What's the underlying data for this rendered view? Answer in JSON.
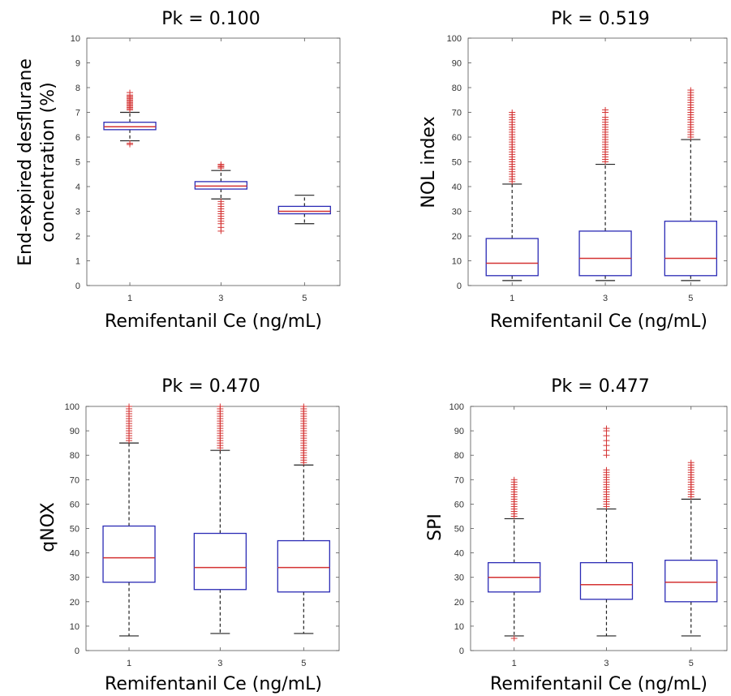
{
  "chart_data": [
    {
      "type": "box",
      "title": "Pk = 0.100",
      "xlabel": "Remifentanil Ce (ng/mL)",
      "ylabel": [
        "End-expired desflurane",
        "concentration (%)"
      ],
      "categories": [
        "1",
        "3",
        "5"
      ],
      "ylim": [
        0,
        10
      ],
      "yticks": [
        "0",
        "1",
        "2",
        "3",
        "4",
        "5",
        "6",
        "7",
        "8",
        "9",
        "10"
      ],
      "boxes": [
        {
          "category": "1",
          "whisker_low": 5.85,
          "q1": 6.3,
          "median": 6.42,
          "q3": 6.6,
          "whisker_high": 7.0,
          "outliers": [
            5.7,
            5.75,
            7.1,
            7.15,
            7.2,
            7.25,
            7.3,
            7.35,
            7.4,
            7.45,
            7.5,
            7.55,
            7.6,
            7.65,
            7.7,
            7.8
          ]
        },
        {
          "category": "3",
          "whisker_low": 3.5,
          "q1": 3.9,
          "median": 4.02,
          "q3": 4.2,
          "whisker_high": 4.65,
          "outliers": [
            4.75,
            4.8,
            4.85,
            4.9,
            3.4,
            3.3,
            3.2,
            3.1,
            3.0,
            2.9,
            2.8,
            2.7,
            2.6,
            2.5,
            2.35,
            2.2
          ]
        },
        {
          "category": "5",
          "whisker_low": 2.5,
          "q1": 2.9,
          "median": 3.0,
          "q3": 3.2,
          "whisker_high": 3.65,
          "outliers": []
        }
      ]
    },
    {
      "type": "box",
      "title": "Pk = 0.519",
      "xlabel": "Remifentanil Ce (ng/mL)",
      "ylabel": [
        "NOL index"
      ],
      "categories": [
        "1",
        "3",
        "5"
      ],
      "ylim": [
        0,
        100
      ],
      "yticks": [
        "0",
        "10",
        "20",
        "30",
        "40",
        "50",
        "60",
        "70",
        "80",
        "90",
        "100"
      ],
      "boxes": [
        {
          "category": "1",
          "whisker_low": 2,
          "q1": 4,
          "median": 9,
          "q3": 19,
          "whisker_high": 41,
          "outliers": [
            42,
            43,
            44,
            45,
            46,
            47,
            48,
            49,
            50,
            51,
            52,
            53,
            54,
            55,
            56,
            57,
            58,
            59,
            60,
            61,
            62,
            63,
            64,
            65,
            66,
            67,
            68,
            69,
            70
          ]
        },
        {
          "category": "3",
          "whisker_low": 2,
          "q1": 4,
          "median": 11,
          "q3": 22,
          "whisker_high": 49,
          "outliers": [
            50,
            51,
            52,
            53,
            54,
            55,
            56,
            57,
            58,
            59,
            60,
            61,
            62,
            63,
            64,
            65,
            66,
            67,
            68,
            70,
            71
          ]
        },
        {
          "category": "5",
          "whisker_low": 2,
          "q1": 4,
          "median": 11,
          "q3": 26,
          "whisker_high": 59,
          "outliers": [
            60,
            61,
            62,
            63,
            64,
            65,
            66,
            67,
            68,
            69,
            70,
            71,
            72,
            73,
            74,
            75,
            76,
            77,
            78,
            79
          ]
        }
      ]
    },
    {
      "type": "box",
      "title": "Pk = 0.470",
      "xlabel": "Remifentanil Ce (ng/mL)",
      "ylabel": [
        "qNOX"
      ],
      "categories": [
        "1",
        "3",
        "5"
      ],
      "ylim": [
        0,
        100
      ],
      "yticks": [
        "0",
        "10",
        "20",
        "30",
        "40",
        "50",
        "60",
        "70",
        "80",
        "90",
        "100"
      ],
      "boxes": [
        {
          "category": "1",
          "whisker_low": 6,
          "q1": 28,
          "median": 38,
          "q3": 51,
          "whisker_high": 85,
          "outliers": [
            86,
            87,
            88,
            89,
            90,
            91,
            92,
            93,
            94,
            95,
            96,
            97,
            98,
            99,
            100
          ]
        },
        {
          "category": "3",
          "whisker_low": 7,
          "q1": 25,
          "median": 34,
          "q3": 48,
          "whisker_high": 82,
          "outliers": [
            83,
            84,
            85,
            86,
            87,
            88,
            89,
            90,
            91,
            92,
            93,
            94,
            95,
            96,
            97,
            98,
            99,
            100
          ]
        },
        {
          "category": "5",
          "whisker_low": 7,
          "q1": 24,
          "median": 34,
          "q3": 45,
          "whisker_high": 76,
          "outliers": [
            77,
            78,
            79,
            80,
            81,
            82,
            83,
            84,
            85,
            86,
            87,
            88,
            89,
            90,
            91,
            92,
            93,
            94,
            95,
            96,
            97,
            98,
            99,
            100
          ]
        }
      ]
    },
    {
      "type": "box",
      "title": "Pk = 0.477",
      "xlabel": "Remifentanil Ce (ng/mL)",
      "ylabel": [
        "SPI"
      ],
      "categories": [
        "1",
        "3",
        "5"
      ],
      "ylim": [
        0,
        100
      ],
      "yticks": [
        "0",
        "10",
        "20",
        "30",
        "40",
        "50",
        "60",
        "70",
        "80",
        "90",
        "100"
      ],
      "boxes": [
        {
          "category": "1",
          "whisker_low": 6,
          "q1": 24,
          "median": 30,
          "q3": 36,
          "whisker_high": 54,
          "outliers": [
            5,
            55,
            56,
            57,
            58,
            59,
            60,
            61,
            62,
            63,
            64,
            65,
            66,
            67,
            68,
            69,
            70
          ]
        },
        {
          "category": "3",
          "whisker_low": 6,
          "q1": 21,
          "median": 27,
          "q3": 36,
          "whisker_high": 58,
          "outliers": [
            59,
            60,
            61,
            62,
            63,
            64,
            65,
            66,
            67,
            68,
            69,
            70,
            71,
            72,
            73,
            74,
            80,
            82,
            84,
            86,
            88,
            90,
            91
          ]
        },
        {
          "category": "5",
          "whisker_low": 6,
          "q1": 20,
          "median": 28,
          "q3": 37,
          "whisker_high": 62,
          "outliers": [
            63,
            64,
            65,
            66,
            67,
            68,
            69,
            70,
            71,
            72,
            73,
            74,
            75,
            76,
            77
          ]
        }
      ]
    }
  ],
  "colors": {
    "box_edge": "#2b2bb5",
    "median": "#d43333",
    "whisker": "#222222",
    "outlier": "#d43333"
  }
}
